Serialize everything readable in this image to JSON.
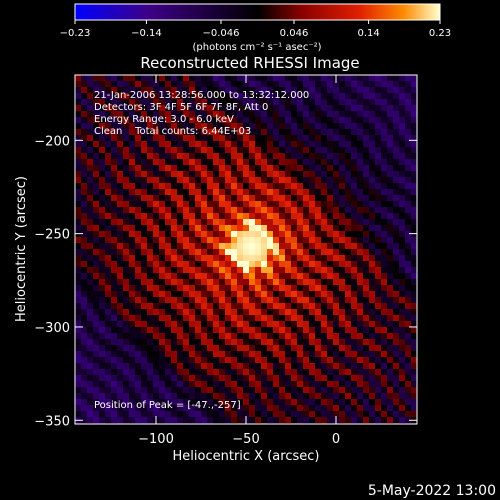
{
  "chart_data": {
    "type": "heatmap",
    "title": "Reconstructed RHESSI Image",
    "xlabel": "Heliocentric X (arcsec)",
    "ylabel": "Heliocentric Y (arcsec)",
    "xlim": [
      -145,
      45
    ],
    "ylim": [
      -352,
      -165
    ],
    "x_ticks": [
      -100,
      -50,
      0
    ],
    "y_ticks": [
      -200,
      -250,
      -300,
      -350
    ],
    "x_tick_labels": [
      "−100",
      "−50",
      "0"
    ],
    "y_tick_labels": [
      "−200",
      "−250",
      "−300",
      "−350"
    ],
    "colorbar": {
      "min": -0.23,
      "max": 0.23,
      "ticks": [
        -0.23,
        -0.14,
        -0.046,
        0.046,
        0.14,
        0.23
      ],
      "tick_labels": [
        "−0.23",
        "−0.14",
        "−0.046",
        "0.046",
        "0.14",
        "0.23"
      ],
      "unit_label": "(photons cm⁻² s⁻¹ asec⁻²)"
    },
    "annotations": [
      "21-Jan-2006 13:28:56.000 to 13:32:12.000",
      "Detectors: 3F 4F 5F 6F 7F 8F, Att 0",
      "Energy Range: 3.0 - 6.0 keV",
      "Clean    Total counts: 6.44E+03"
    ],
    "peak": {
      "x": -47,
      "y": -257,
      "label": "Position of Peak = [-47.,-257]"
    },
    "colors": [
      "#0000ff",
      "#3d0088",
      "#000000",
      "#8a0000",
      "#e02000",
      "#ff8a00",
      "#ffffd0"
    ]
  },
  "footer_date": "5-May-2022 13:00"
}
